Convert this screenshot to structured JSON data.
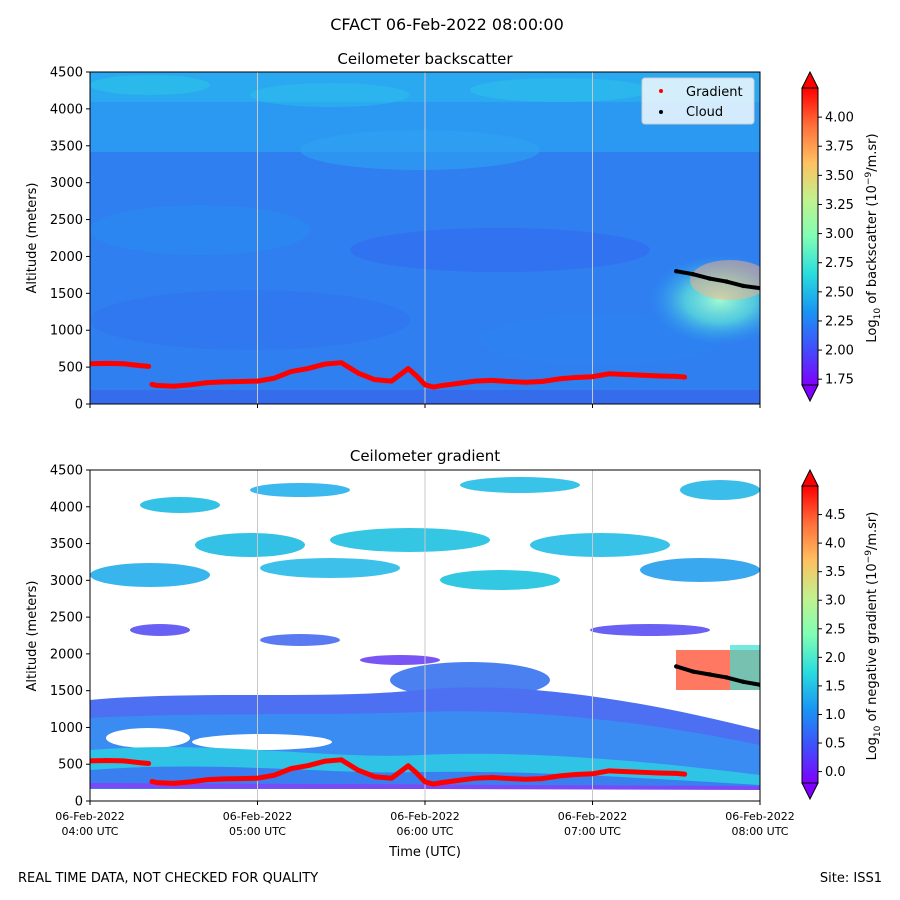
{
  "figure": {
    "suptitle": "CFACT 06-Feb-2022 08:00:00",
    "footer_left": "REAL TIME DATA, NOT CHECKED FOR QUALITY",
    "footer_right": "Site: ISS1"
  },
  "chart_data": [
    {
      "type": "heatmap",
      "title": "Ceilometer backscatter",
      "ylabel": "Altitude (meters)",
      "xlabel": "",
      "xlim_hours": [
        4,
        8
      ],
      "ylim": [
        0,
        4500
      ],
      "yticks": [
        0,
        500,
        1000,
        1500,
        2000,
        2500,
        3000,
        3500,
        4000,
        4500
      ],
      "xticks_hours": [
        4,
        5,
        6,
        7,
        8
      ],
      "colorbar": {
        "label_prefix": "Log",
        "label_sub": "10",
        "label_mid": " of backscatter (10",
        "label_sup": "−9",
        "label_suffix": "/m.sr)",
        "range": [
          1.7,
          4.25
        ],
        "ticks": [
          "1.75",
          "2.00",
          "2.25",
          "2.50",
          "2.75",
          "3.00",
          "3.25",
          "3.50",
          "3.75",
          "4.00"
        ],
        "tick_values": [
          1.75,
          2.0,
          2.25,
          2.5,
          2.75,
          3.0,
          3.25,
          3.5,
          3.75,
          4.0
        ]
      },
      "legend": {
        "placement": "top-right",
        "entries": [
          {
            "label": "Gradient",
            "color": "#ff0000"
          },
          {
            "label": "Cloud",
            "color": "#000000"
          }
        ]
      },
      "series": [
        {
          "name": "Gradient",
          "color": "#ff0000",
          "x_hours": [
            4.0,
            4.1,
            4.2,
            4.3,
            4.35,
            4.37,
            4.4,
            4.5,
            4.6,
            4.7,
            4.8,
            4.9,
            5.0,
            5.1,
            5.2,
            5.3,
            5.4,
            5.5,
            5.6,
            5.7,
            5.8,
            5.9,
            5.95,
            6.0,
            6.05,
            6.1,
            6.2,
            6.3,
            6.4,
            6.5,
            6.6,
            6.7,
            6.8,
            6.9,
            7.0,
            7.1,
            7.2,
            7.3,
            7.4,
            7.5,
            7.55
          ],
          "y_meters": [
            545,
            550,
            545,
            520,
            510,
            265,
            250,
            240,
            260,
            290,
            300,
            305,
            310,
            350,
            440,
            480,
            540,
            560,
            420,
            330,
            310,
            480,
            380,
            260,
            230,
            250,
            280,
            310,
            320,
            305,
            295,
            305,
            340,
            360,
            370,
            410,
            400,
            390,
            380,
            375,
            365
          ]
        },
        {
          "name": "Cloud",
          "color": "#000000",
          "x_hours": [
            7.5,
            7.6,
            7.7,
            7.8,
            7.9,
            8.0
          ],
          "y_meters": [
            1800,
            1760,
            1700,
            1660,
            1600,
            1570
          ]
        }
      ]
    },
    {
      "type": "heatmap",
      "title": "Ceilometer gradient",
      "ylabel": "Altitude (meters)",
      "xlabel": "Time (UTC)",
      "xlim_hours": [
        4,
        8
      ],
      "ylim": [
        0,
        4500
      ],
      "yticks": [
        0,
        500,
        1000,
        1500,
        2000,
        2500,
        3000,
        3500,
        4000,
        4500
      ],
      "xticks_hours": [
        4,
        5,
        6,
        7,
        8
      ],
      "xtick_labels": [
        {
          "date": "06-Feb-2022",
          "time": "04:00 UTC"
        },
        {
          "date": "06-Feb-2022",
          "time": "05:00 UTC"
        },
        {
          "date": "06-Feb-2022",
          "time": "06:00 UTC"
        },
        {
          "date": "06-Feb-2022",
          "time": "07:00 UTC"
        },
        {
          "date": "06-Feb-2022",
          "time": "08:00 UTC"
        }
      ],
      "colorbar": {
        "label_prefix": "Log",
        "label_sub": "10",
        "label_mid": " of negative gradient (10",
        "label_sup": "−9",
        "label_suffix": "/m.sr)",
        "range": [
          -0.2,
          5.0
        ],
        "ticks": [
          "0.0",
          "0.5",
          "1.0",
          "1.5",
          "2.0",
          "2.5",
          "3.0",
          "3.5",
          "4.0",
          "4.5"
        ],
        "tick_values": [
          0.0,
          0.5,
          1.0,
          1.5,
          2.0,
          2.5,
          3.0,
          3.5,
          4.0,
          4.5
        ]
      },
      "series": [
        {
          "name": "Gradient",
          "color": "#ff0000",
          "x_hours": [
            4.0,
            4.1,
            4.2,
            4.3,
            4.35,
            4.37,
            4.4,
            4.5,
            4.6,
            4.7,
            4.8,
            4.9,
            5.0,
            5.1,
            5.2,
            5.3,
            5.4,
            5.5,
            5.6,
            5.7,
            5.8,
            5.9,
            5.95,
            6.0,
            6.05,
            6.1,
            6.2,
            6.3,
            6.4,
            6.5,
            6.6,
            6.7,
            6.8,
            6.9,
            7.0,
            7.1,
            7.2,
            7.3,
            7.4,
            7.5,
            7.55
          ],
          "y_meters": [
            545,
            550,
            545,
            520,
            510,
            265,
            250,
            240,
            260,
            290,
            300,
            305,
            310,
            350,
            440,
            480,
            540,
            560,
            420,
            330,
            310,
            480,
            380,
            260,
            230,
            250,
            280,
            310,
            320,
            305,
            295,
            305,
            340,
            360,
            370,
            410,
            400,
            390,
            380,
            375,
            365
          ]
        },
        {
          "name": "Cloud",
          "color": "#000000",
          "x_hours": [
            7.5,
            7.6,
            7.7,
            7.8,
            7.9,
            8.0
          ],
          "y_meters": [
            1830,
            1760,
            1720,
            1680,
            1620,
            1580
          ]
        }
      ]
    }
  ]
}
